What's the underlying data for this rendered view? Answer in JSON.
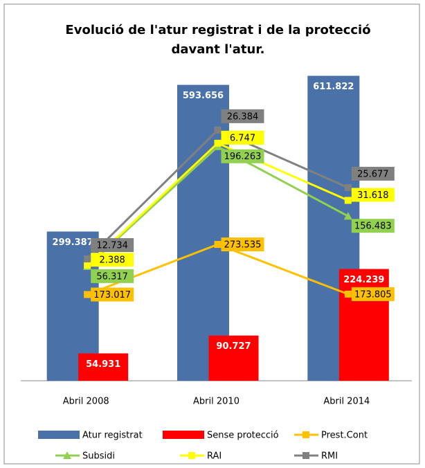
{
  "chart_data": {
    "type": "bar-line",
    "title": "Evolució de l'atur registrat i de la protecció davant l'atur.",
    "categories": [
      "Abril 2008",
      "Abril 2010",
      "Abril 2014"
    ],
    "ylim": [
      0,
      650000
    ],
    "stacked_lines": true,
    "legend": "bottom",
    "series": [
      {
        "name": "Atur registrat",
        "type": "bar",
        "color": "#4a72a8",
        "values": [
          299387,
          593656,
          611822
        ],
        "value_labels": [
          "299.387",
          "593.656",
          "611.822"
        ]
      },
      {
        "name": "Sense protecció",
        "type": "bar",
        "color": "#ff0000",
        "values": [
          54931,
          90727,
          224239
        ],
        "value_labels": [
          "54.931",
          "90.727",
          "224.239"
        ]
      },
      {
        "name": "Prest.Cont",
        "type": "line",
        "marker": "square",
        "color": "#ffc000",
        "values": [
          173017,
          273535,
          173805
        ],
        "value_labels": [
          "173.017",
          "273.535",
          "173.805"
        ]
      },
      {
        "name": "Subsidi",
        "type": "line",
        "marker": "triangle",
        "color": "#92d050",
        "values": [
          56317,
          196263,
          156483
        ],
        "value_labels": [
          "56.317",
          "196.263",
          "156.483"
        ]
      },
      {
        "name": "RAI",
        "type": "line",
        "marker": "square",
        "color": "#ffff00",
        "values": [
          2388,
          6747,
          31618
        ],
        "value_labels": [
          "2.388",
          "6.747",
          "31.618"
        ]
      },
      {
        "name": "RMI",
        "type": "line",
        "marker": "square",
        "color": "#808080",
        "values": [
          12734,
          26384,
          25677
        ],
        "value_labels": [
          "12.734",
          "26.384",
          "25.677"
        ]
      }
    ]
  }
}
